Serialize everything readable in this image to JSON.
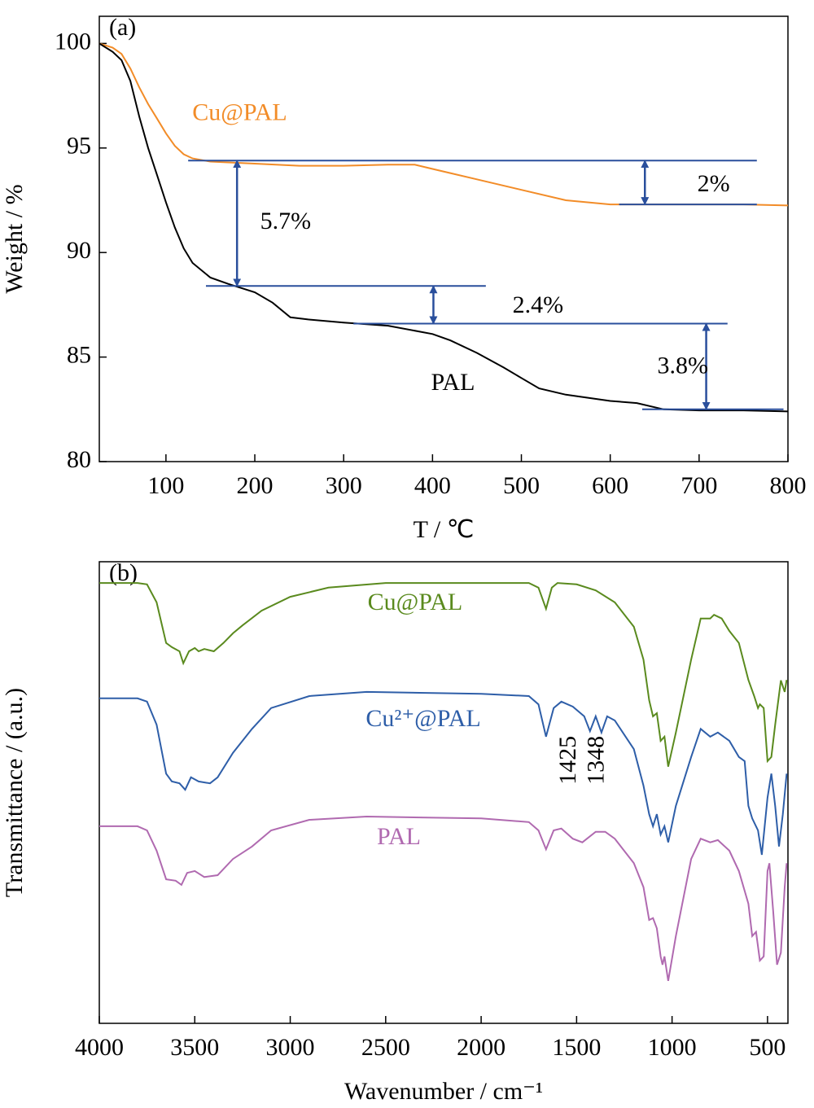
{
  "chart_data": [
    {
      "type": "line",
      "panel_label": "(a)",
      "xlabel": "T / ℃",
      "ylabel": "Weight / %",
      "xlim": [
        25,
        800
      ],
      "ylim": [
        80,
        101.3
      ],
      "xticks": [
        100,
        200,
        300,
        400,
        500,
        600,
        700,
        800
      ],
      "yticks": [
        80,
        85,
        90,
        95,
        100
      ],
      "series": [
        {
          "name": "Cu@PAL",
          "color": "#f28c28",
          "label_x": 183,
          "label_y": 96.6,
          "x": [
            25,
            40,
            50,
            60,
            70,
            80,
            90,
            100,
            110,
            120,
            130,
            150,
            200,
            250,
            300,
            350,
            380,
            400,
            420,
            450,
            500,
            550,
            600,
            650,
            700,
            750,
            800
          ],
          "values": [
            100,
            99.8,
            99.5,
            98.8,
            97.9,
            97.1,
            96.4,
            95.7,
            95.1,
            94.7,
            94.5,
            94.35,
            94.25,
            94.15,
            94.15,
            94.2,
            94.2,
            94.0,
            93.8,
            93.5,
            93.0,
            92.5,
            92.3,
            92.3,
            92.3,
            92.3,
            92.25
          ]
        },
        {
          "name": "PAL",
          "color": "#000000",
          "label_x": 423,
          "label_y": 83.7,
          "x": [
            25,
            40,
            50,
            60,
            70,
            80,
            90,
            100,
            110,
            120,
            130,
            150,
            170,
            200,
            220,
            240,
            260,
            300,
            350,
            400,
            420,
            450,
            480,
            500,
            520,
            550,
            600,
            630,
            660,
            700,
            750,
            800
          ],
          "values": [
            100,
            99.6,
            99.2,
            98.2,
            96.5,
            95,
            93.7,
            92.4,
            91.2,
            90.2,
            89.5,
            88.8,
            88.5,
            88.1,
            87.6,
            86.9,
            86.8,
            86.65,
            86.5,
            86.1,
            85.8,
            85.2,
            84.5,
            84.0,
            83.5,
            83.2,
            82.9,
            82.8,
            82.5,
            82.45,
            82.45,
            82.4
          ]
        }
      ],
      "reference_lines": [
        {
          "y": 94.4,
          "x": [
            125,
            765
          ]
        },
        {
          "y": 92.3,
          "x": [
            610,
            765
          ]
        },
        {
          "y": 88.4,
          "x": [
            145,
            460
          ]
        },
        {
          "y": 86.6,
          "x": [
            311,
            732
          ]
        },
        {
          "y": 82.5,
          "x": [
            636,
            795
          ]
        }
      ],
      "annotations": [
        {
          "text": "5.7%",
          "x": 206,
          "y": 91.4,
          "arrow_x": 180,
          "arrow_y": [
            94.4,
            88.4
          ]
        },
        {
          "text": "2%",
          "x": 698,
          "y": 93.2,
          "arrow_x": 639,
          "arrow_y": [
            94.4,
            92.3
          ]
        },
        {
          "text": "2.4%",
          "x": 490,
          "y": 87.4,
          "arrow_x": 401,
          "arrow_y": [
            88.4,
            86.6
          ]
        },
        {
          "text": "3.8%",
          "x": 653,
          "y": 84.5,
          "arrow_x": 708,
          "arrow_y": [
            86.6,
            82.5
          ]
        }
      ]
    },
    {
      "type": "line",
      "panel_label": "(b)",
      "xlabel": "Wavenumber / cm⁻¹",
      "ylabel": "Transmittance / (a.u.)",
      "xlim": [
        4000,
        393
      ],
      "ylim": [
        0,
        100
      ],
      "xticks": [
        4000,
        3500,
        3000,
        2500,
        2000,
        1500,
        1000,
        500
      ],
      "series": [
        {
          "name": "Cu@PAL",
          "color": "#5a8a1e",
          "label_x": 2346,
          "label_y": 90.8,
          "x": [
            4000,
            3800,
            3750,
            3700,
            3650,
            3620,
            3580,
            3560,
            3530,
            3500,
            3480,
            3450,
            3400,
            3350,
            3300,
            3250,
            3150,
            3000,
            2800,
            2500,
            2000,
            1750,
            1700,
            1660,
            1630,
            1600,
            1500,
            1400,
            1300,
            1200,
            1150,
            1120,
            1100,
            1080,
            1060,
            1040,
            1020,
            980,
            900,
            850,
            800,
            780,
            740,
            700,
            650,
            600,
            570,
            550,
            540,
            520,
            500,
            480,
            460,
            430,
            410,
            400
          ],
          "values": [
            95.4,
            95.4,
            95.1,
            91.2,
            82.4,
            81.5,
            80.6,
            78.0,
            80.6,
            81.3,
            80.6,
            81.1,
            80.6,
            82.4,
            84.5,
            86.2,
            89.4,
            92.4,
            94.4,
            95.4,
            95.4,
            95.4,
            94.4,
            89.8,
            94.4,
            95.4,
            95.1,
            93.8,
            91.2,
            85.9,
            78.8,
            70.0,
            66.5,
            67.2,
            61.2,
            62.1,
            55.6,
            63.0,
            78.8,
            87.7,
            87.7,
            88.5,
            87.7,
            85.0,
            82.4,
            74.4,
            70.9,
            68.3,
            69.1,
            68.3,
            56.8,
            57.7,
            64.7,
            74.3,
            71.8,
            74.4
          ]
        },
        {
          "name": "Cu²⁺@PAL",
          "color": "#2e5ea8",
          "label_x": 2303,
          "label_y": 65.6,
          "x": [
            4000,
            3800,
            3750,
            3700,
            3650,
            3620,
            3580,
            3550,
            3520,
            3480,
            3420,
            3380,
            3300,
            3200,
            3100,
            2900,
            2600,
            2000,
            1750,
            1700,
            1660,
            1620,
            1580,
            1520,
            1460,
            1430,
            1400,
            1370,
            1340,
            1300,
            1200,
            1150,
            1120,
            1100,
            1080,
            1060,
            1040,
            1020,
            980,
            900,
            850,
            800,
            760,
            700,
            650,
            620,
            600,
            580,
            550,
            530,
            500,
            480,
            460,
            440,
            420,
            400
          ],
          "values": [
            70.4,
            70.4,
            69.7,
            64.7,
            54.1,
            52.4,
            52.0,
            50.6,
            53.3,
            52.4,
            52.0,
            53.3,
            58.6,
            63.8,
            68.3,
            70.9,
            71.8,
            71.4,
            70.9,
            69.1,
            62.1,
            68.3,
            69.7,
            68.6,
            66.5,
            63.3,
            66.5,
            63.0,
            66.5,
            65.6,
            59.4,
            51.5,
            45.3,
            42.7,
            45.3,
            40.9,
            42.7,
            39.2,
            47.1,
            57.7,
            63.8,
            62.1,
            63.0,
            61.2,
            57.7,
            56.8,
            47.1,
            44.4,
            41.8,
            36.5,
            48.9,
            54.1,
            47.1,
            38.3,
            45.3,
            54.1
          ]
        },
        {
          "name": "PAL",
          "color": "#b06ab0",
          "label_x": 2431,
          "label_y": 40.0,
          "x": [
            4000,
            3800,
            3750,
            3700,
            3650,
            3600,
            3570,
            3540,
            3500,
            3450,
            3380,
            3300,
            3200,
            3100,
            2900,
            2600,
            2000,
            1750,
            1700,
            1660,
            1620,
            1580,
            1520,
            1470,
            1400,
            1350,
            1300,
            1200,
            1150,
            1120,
            1100,
            1080,
            1060,
            1050,
            1040,
            1020,
            980,
            900,
            850,
            800,
            760,
            700,
            650,
            600,
            580,
            560,
            540,
            520,
            500,
            490,
            470,
            450,
            430,
            410,
            400
          ],
          "values": [
            42.7,
            42.7,
            41.8,
            37.4,
            31.2,
            30.9,
            30.0,
            32.6,
            33.0,
            31.7,
            32.1,
            35.6,
            38.3,
            41.8,
            44.1,
            44.8,
            44.4,
            43.6,
            41.8,
            37.7,
            41.8,
            42.2,
            40.0,
            39.2,
            41.5,
            41.5,
            40.0,
            34.7,
            29.5,
            22.4,
            22.8,
            20.6,
            14.5,
            12.7,
            14.5,
            9.2,
            18.9,
            35.6,
            40.0,
            39.2,
            39.7,
            37.4,
            33.0,
            25.9,
            18.9,
            19.8,
            13.6,
            14.5,
            33.0,
            34.7,
            24.2,
            12.7,
            15.3,
            29.5,
            34.7
          ]
        }
      ],
      "annotations": [
        {
          "text": "1425",
          "x": 1536,
          "y": 57,
          "vertical": true
        },
        {
          "text": "1348",
          "x": 1387,
          "y": 57,
          "vertical": true
        }
      ]
    }
  ]
}
